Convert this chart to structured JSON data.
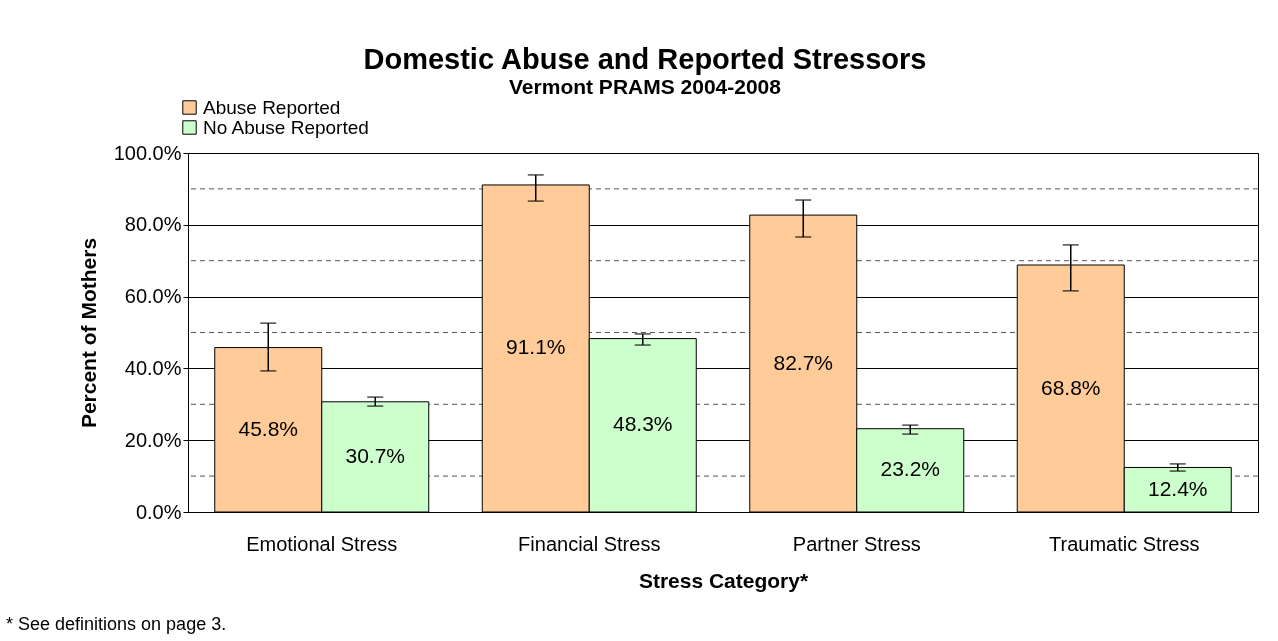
{
  "chart_data": {
    "type": "bar",
    "title": "Domestic Abuse and Reported Stressors",
    "subtitle": "Vermont PRAMS 2004-2008",
    "xlabel": "Stress Category*",
    "ylabel": "Percent of Mothers",
    "categories": [
      "Emotional Stress",
      "Financial Stress",
      "Partner Stress",
      "Traumatic Stress"
    ],
    "series": [
      {
        "name": "Abuse Reported",
        "color": "#ffcc99",
        "values": [
          45.8,
          91.1,
          82.7,
          68.8
        ],
        "value_labels": [
          "45.8%",
          "91.1%",
          "82.7%",
          "68.8%"
        ],
        "errors": [
          [
            39.3,
            52.6
          ],
          [
            86.6,
            93.9
          ],
          [
            76.6,
            86.9
          ],
          [
            61.6,
            74.4
          ]
        ]
      },
      {
        "name": "No Abuse Reported",
        "color": "#ccffcc",
        "values": [
          30.7,
          48.3,
          23.2,
          12.4
        ],
        "value_labels": [
          "30.7%",
          "48.3%",
          "23.2%",
          "12.4%"
        ],
        "errors": [
          [
            29.5,
            32.0
          ],
          [
            46.5,
            49.6
          ],
          [
            21.7,
            24.2
          ],
          [
            11.4,
            13.4
          ]
        ]
      }
    ],
    "ylim": [
      0,
      100
    ],
    "yticks": [
      {
        "value": 0,
        "label": "0.0%"
      },
      {
        "value": 10,
        "label": null
      },
      {
        "value": 20,
        "label": "20.0%"
      },
      {
        "value": 30,
        "label": null
      },
      {
        "value": 40,
        "label": "40.0%"
      },
      {
        "value": 50,
        "label": null
      },
      {
        "value": 60,
        "label": "60.0%"
      },
      {
        "value": 70,
        "label": null
      },
      {
        "value": 80,
        "label": "80.0%"
      },
      {
        "value": 90,
        "label": null
      },
      {
        "value": 100,
        "label": "100.0%"
      }
    ],
    "grid": "y",
    "legend": "top left",
    "annotations": [
      "* See definitions on page 3."
    ]
  }
}
